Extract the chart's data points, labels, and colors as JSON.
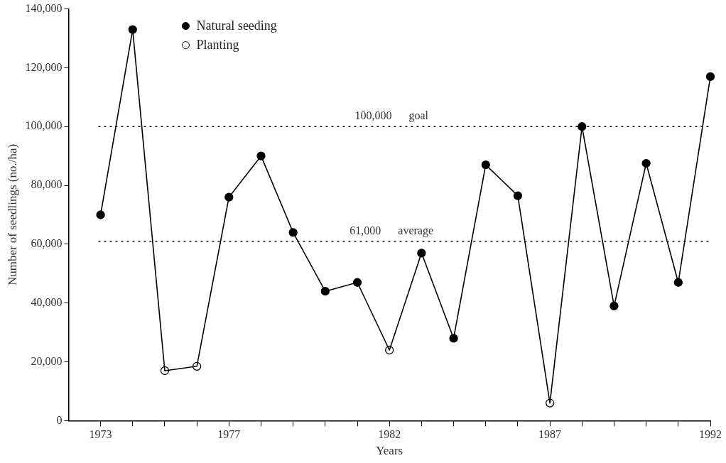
{
  "chart_data": {
    "type": "line",
    "xlabel": "Years",
    "ylabel": "Number of seedlings (no./ha)",
    "xlim": [
      1972,
      1992
    ],
    "xticks": [
      1973,
      {
        "value": 1974,
        "label": null
      },
      {
        "value": 1975,
        "label": null
      },
      {
        "value": 1976,
        "label": null
      },
      1977,
      {
        "value": 1978,
        "label": null
      },
      {
        "value": 1979,
        "label": null
      },
      {
        "value": 1980,
        "label": null
      },
      {
        "value": 1981,
        "label": null
      },
      1982,
      {
        "value": 1983,
        "label": null
      },
      {
        "value": 1984,
        "label": null
      },
      {
        "value": 1985,
        "label": null
      },
      {
        "value": 1986,
        "label": null
      },
      1987,
      {
        "value": 1988,
        "label": null
      },
      {
        "value": 1989,
        "label": null
      },
      {
        "value": 1990,
        "label": null
      },
      {
        "value": 1991,
        "label": null
      },
      1992
    ],
    "ylim": [
      0,
      140000
    ],
    "yticks": [
      0,
      {
        "value": 20000,
        "label": "20,000"
      },
      {
        "value": 40000,
        "label": "40,000"
      },
      {
        "value": 60000,
        "label": "60,000"
      },
      {
        "value": 80000,
        "label": "80,000"
      },
      {
        "value": 100000,
        "label": "100,000"
      },
      {
        "value": 120000,
        "label": "120,000"
      },
      {
        "value": 140000,
        "label": "140,000"
      }
    ],
    "series": [
      {
        "color": "#000000",
        "marker": "none",
        "x": [
          1973,
          1974,
          1975,
          1976,
          1977,
          1978,
          1979,
          1980,
          1981,
          1982,
          1983,
          1984,
          1985,
          1986,
          1987,
          1988,
          1989,
          1990,
          1991,
          1992
        ],
        "values": [
          70000,
          133000,
          17000,
          18500,
          76000,
          90000,
          64000,
          44000,
          47000,
          24000,
          57000,
          28000,
          87000,
          76500,
          6000,
          100000,
          39000,
          87500,
          47000,
          117000
        ]
      },
      {
        "type": "scatter",
        "name": "Natural seeding",
        "color": "#000000",
        "marker": "circle",
        "x": [
          1973,
          1974,
          1977,
          1978,
          1979,
          1980,
          1981,
          1983,
          1984,
          1985,
          1986,
          1988,
          1989,
          1990,
          1991,
          1992
        ],
        "values": [
          70000,
          133000,
          76000,
          90000,
          64000,
          44000,
          47000,
          57000,
          28000,
          87000,
          76500,
          100000,
          39000,
          87500,
          47000,
          117000
        ]
      },
      {
        "type": "scatter",
        "name": "Planting",
        "color": "#ffffff",
        "marker": "circle",
        "x": [
          1975,
          1976,
          1982,
          1987
        ],
        "values": [
          17000,
          18500,
          24000,
          6000
        ]
      }
    ],
    "ref_lines": [
      {
        "axis": "y",
        "value": 100000,
        "label": "100,000      goal",
        "line_style": "dotted",
        "color": "#000000"
      },
      {
        "axis": "y",
        "value": 61000,
        "label": "61,000      average",
        "line_style": "dotted",
        "color": "#000000"
      }
    ],
    "legend": "top left",
    "grid": false
  }
}
